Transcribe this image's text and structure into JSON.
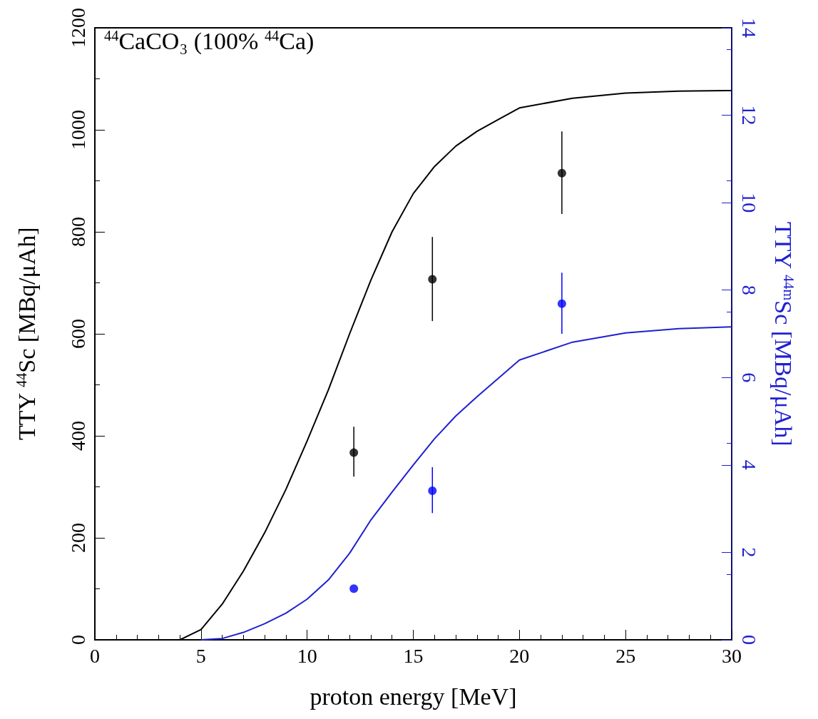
{
  "chart_data": {
    "type": "line",
    "annotations": [
      "$^{44}$CaCO₃ (100% $^{44}$Ca)"
    ],
    "xlabel": "proton energy [MeV]",
    "ylabel": "TTY $^{44}$Sc [MBq/μAh]",
    "y2label": "TTY $^{44m}$Sc [MBq/μAh]",
    "xlim": [
      0,
      30
    ],
    "xticks": [
      0,
      5,
      10,
      15,
      20,
      25,
      30
    ],
    "ylim": [
      0,
      1200
    ],
    "yticks": [
      0,
      200,
      400,
      600,
      800,
      1000,
      1200
    ],
    "y2lim": [
      0,
      14
    ],
    "y2ticks": [
      0,
      2,
      4,
      6,
      8,
      10,
      12,
      14
    ],
    "grid": false,
    "line_style": "solid",
    "series": [
      {
        "color": "#000000",
        "x": [
          4,
          5,
          6,
          7,
          8,
          9,
          10,
          11,
          12,
          13,
          14,
          15,
          16,
          17,
          18,
          19,
          20,
          22.5,
          25,
          27.5,
          30
        ],
        "values": [
          0,
          20,
          70,
          135,
          210,
          295,
          390,
          490,
          600,
          705,
          800,
          875,
          928,
          968,
          997,
          1020,
          1043,
          1062,
          1072,
          1076,
          1077
        ]
      },
      {
        "axis": "y2",
        "color": "#2020d0",
        "x": [
          5,
          6,
          7,
          8,
          9,
          10,
          11,
          12,
          13,
          14,
          15,
          16,
          17,
          18,
          20,
          22.5,
          25,
          27.5,
          30
        ],
        "values": [
          0,
          0.03,
          0.17,
          0.37,
          0.61,
          0.93,
          1.37,
          1.98,
          2.74,
          3.38,
          4.0,
          4.6,
          5.12,
          5.56,
          6.4,
          6.81,
          7.02,
          7.12,
          7.16
        ]
      },
      {
        "type": "scatter",
        "marker": "circle",
        "color": "#000000",
        "x": [
          12.2,
          15.9,
          22
        ],
        "values": [
          367,
          707,
          915
        ],
        "errors": [
          [
            320,
            418
          ],
          [
            625,
            790
          ],
          [
            835,
            997
          ]
        ]
      },
      {
        "type": "scatter",
        "marker": "circle",
        "axis": "y2",
        "color": "#0000ff",
        "x": [
          12.2,
          15.9,
          22
        ],
        "values": [
          1.17,
          3.41,
          7.69
        ],
        "errors": [
          null,
          [
            2.9,
            3.95
          ],
          [
            7.0,
            8.4
          ]
        ]
      }
    ]
  }
}
